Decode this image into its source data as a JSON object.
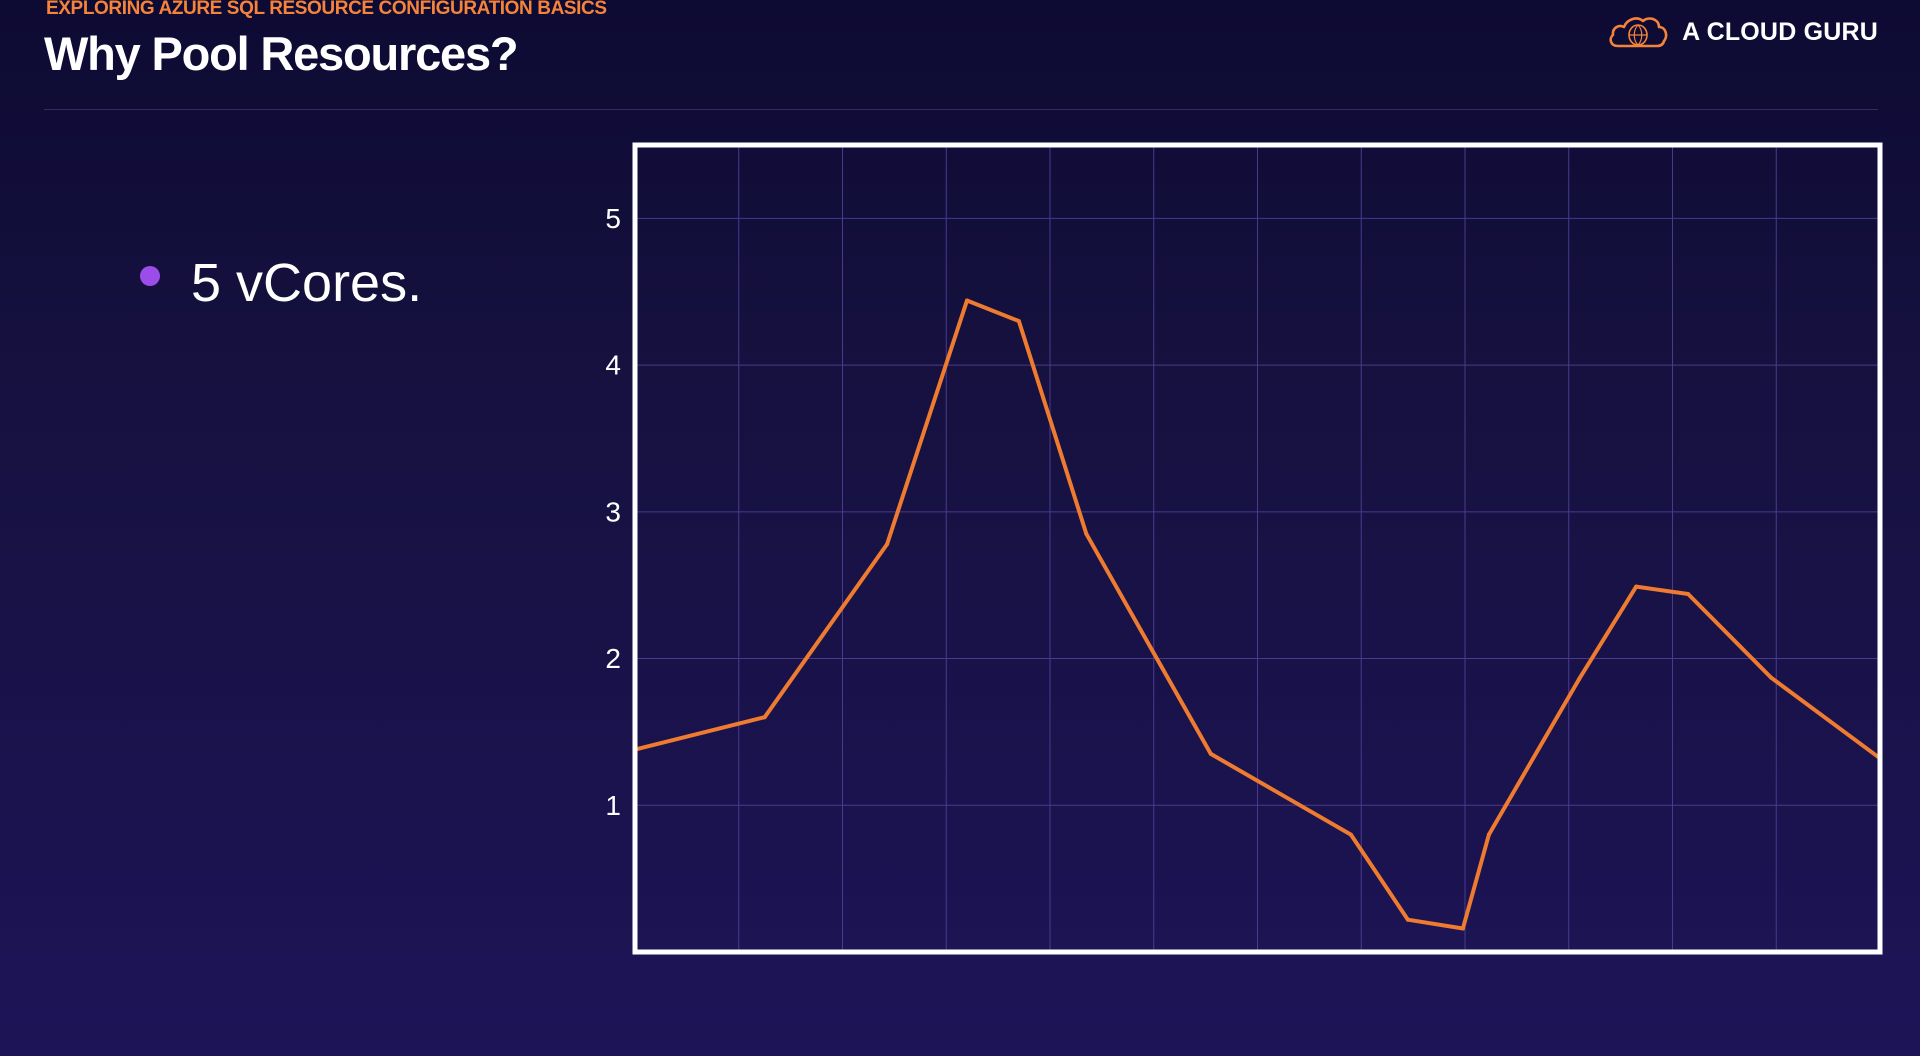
{
  "header": {
    "course_label": "EXPLORING AZURE SQL RESOURCE CONFIGURATION BASICS",
    "title": "Why Pool Resources?"
  },
  "brand": {
    "name": "A CLOUD GURU",
    "logo_icon": "cloud-icon",
    "logo_color": "#f5833a"
  },
  "content": {
    "bullets": [
      {
        "text": "5 vCores."
      }
    ],
    "bullet_color": "#9b4dea"
  },
  "colors": {
    "background": "#16113f",
    "accent": "#f5833a",
    "line": "#ee7b2f",
    "grid": "#4a3a8e",
    "frame": "#ffffff"
  },
  "chart_data": {
    "type": "line",
    "title": "",
    "xlabel": "",
    "ylabel": "",
    "ylim": [
      0,
      5.5
    ],
    "xlim": [
      0,
      12
    ],
    "yticks": [
      "1",
      "2",
      "3",
      "4",
      "5"
    ],
    "x_gridlines": 12,
    "grid": true,
    "legend": "none",
    "series": [
      {
        "x": [
          0,
          1.25,
          2.43,
          3.2,
          3.7,
          4.35,
          5.55,
          6.9,
          7.45,
          7.98,
          8.23,
          9.1,
          9.65,
          10.15,
          10.95,
          12
        ],
        "y": [
          1.38,
          1.6,
          2.78,
          4.44,
          4.3,
          2.85,
          1.35,
          0.8,
          0.22,
          0.16,
          0.8,
          1.86,
          2.49,
          2.44,
          1.87,
          1.32
        ]
      }
    ]
  }
}
